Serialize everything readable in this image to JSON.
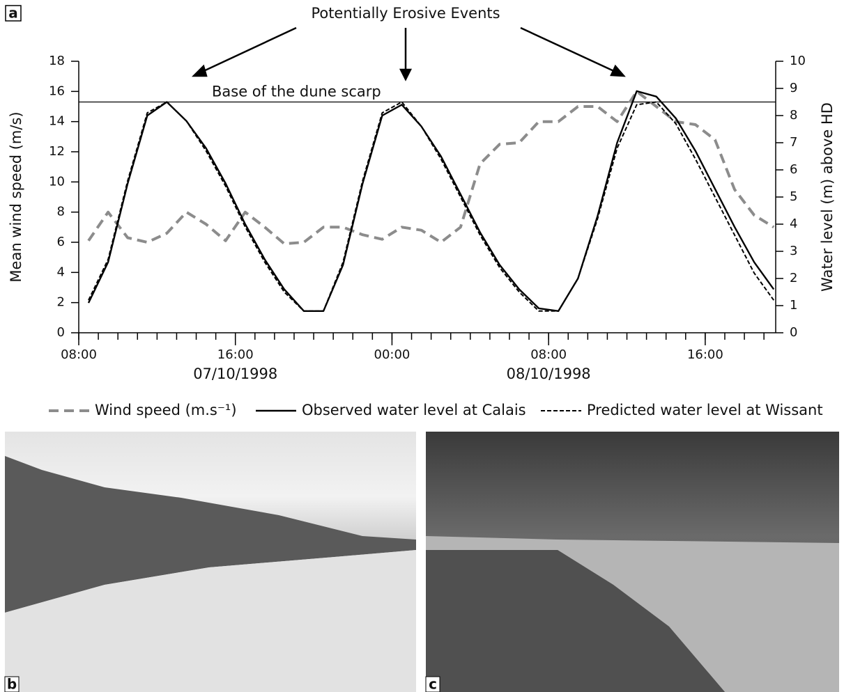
{
  "panel_labels": [
    "a",
    "b",
    "c"
  ],
  "chart_data": {
    "type": "line",
    "annotation": "Potentially Erosive Events",
    "reference_line": {
      "value": 8.5,
      "label": "Base of the dune scarp",
      "axis": "y2"
    },
    "date_labels": [
      {
        "value": 8,
        "label": "07/10/1998"
      },
      {
        "value": 24,
        "label": "08/10/1998"
      }
    ],
    "ylabel": "Mean wind speed (m/s)",
    "y2label": "Water level (m) above HD",
    "x": [
      0.5,
      1.5,
      2.5,
      3.5,
      4.5,
      5.5,
      6.5,
      7.5,
      8.5,
      9.5,
      10.5,
      11.5,
      12.5,
      13.5,
      14.5,
      15.5,
      16.5,
      17.5,
      18.5,
      19.5,
      20.5,
      21.5,
      22.5,
      23.5,
      24.5,
      25.5,
      26.5,
      27.5,
      28.5,
      29.5,
      30.5,
      31.5,
      32.5,
      33.5,
      34.5,
      35.5
    ],
    "xlim": [
      0,
      35.6
    ],
    "xticks": [
      {
        "value": 0,
        "label": "08:00"
      },
      {
        "value": 8,
        "label": "16:00"
      },
      {
        "value": 16,
        "label": "00:00"
      },
      {
        "value": 24,
        "label": "08:00"
      },
      {
        "value": 32,
        "label": "16:00"
      }
    ],
    "xminorticks": [
      0,
      1,
      2,
      3,
      4,
      5,
      6,
      7,
      8,
      9,
      10,
      11,
      12,
      13,
      14,
      15,
      16,
      17,
      18,
      19,
      20,
      21,
      22,
      23,
      24,
      25,
      26,
      27,
      28,
      29,
      30,
      31,
      32,
      33,
      34,
      35
    ],
    "ylim": [
      0,
      18
    ],
    "yticks": [
      0,
      2,
      4,
      6,
      8,
      10,
      12,
      14,
      16,
      18
    ],
    "y2lim": [
      0,
      10
    ],
    "y2ticks": [
      0,
      1,
      2,
      3,
      4,
      5,
      6,
      7,
      8,
      9,
      10
    ],
    "series": [
      {
        "name": "Wind speed (m.s⁻¹)",
        "color": "#8c8c8c",
        "style": "dashed",
        "values": [
          6.1,
          8.0,
          6.3,
          6.0,
          6.6,
          8.0,
          7.2,
          6.1,
          8.0,
          7.0,
          5.9,
          6.0,
          7.0,
          7.0,
          6.5,
          6.2,
          7.0,
          6.8,
          6.0,
          7.0,
          11.2,
          12.5,
          12.6,
          14.0,
          14.0,
          15.0,
          15.0,
          14.0,
          16.0,
          15.0,
          14.0,
          13.8,
          12.8,
          9.5,
          7.8,
          7.0
        ]
      },
      {
        "name": "Observed water level at Calais",
        "color": "#000000",
        "style": "solid",
        "axis": "y2",
        "values": [
          1.1,
          2.6,
          5.5,
          8.0,
          8.5,
          7.8,
          6.8,
          5.5,
          4.0,
          2.7,
          1.6,
          0.8,
          0.8,
          2.5,
          5.5,
          8.0,
          8.4,
          7.6,
          6.5,
          5.1,
          3.7,
          2.5,
          1.6,
          0.9,
          0.8,
          2.0,
          4.3,
          7.0,
          8.9,
          8.7,
          7.9,
          6.7,
          5.3,
          3.9,
          2.6,
          1.6
        ]
      },
      {
        "name": "Predicted water level at Wissant",
        "color": "#000000",
        "style": "dotted",
        "axis": "y2",
        "values": [
          1.2,
          2.7,
          5.6,
          8.1,
          8.5,
          7.8,
          6.7,
          5.4,
          3.9,
          2.6,
          1.5,
          0.8,
          0.8,
          2.6,
          5.6,
          8.1,
          8.5,
          7.6,
          6.4,
          5.0,
          3.6,
          2.4,
          1.5,
          0.8,
          0.8,
          2.0,
          4.2,
          6.8,
          8.4,
          8.5,
          7.7,
          6.4,
          5.0,
          3.6,
          2.2,
          1.2
        ]
      }
    ]
  }
}
